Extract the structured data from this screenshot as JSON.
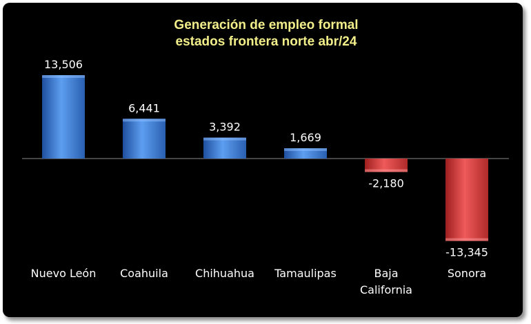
{
  "chart_data": {
    "type": "bar",
    "title": [
      "Generación de empleo formal",
      "estados frontera norte abr/24"
    ],
    "categories": [
      [
        "Nuevo León"
      ],
      [
        "Coahuila"
      ],
      [
        "Chihuahua"
      ],
      [
        "Tamaulipas"
      ],
      [
        "Baja",
        "California"
      ],
      [
        "Sonora"
      ]
    ],
    "values": [
      13506,
      6441,
      3392,
      1669,
      -2180,
      -13345
    ],
    "value_labels": [
      "13,506",
      "6,441",
      "3,392",
      "1,669",
      "-2,180",
      "-13,345"
    ],
    "positive_color": "#3f7fd6",
    "negative_color": "#d63b3b",
    "grid": false,
    "legend": "none"
  }
}
